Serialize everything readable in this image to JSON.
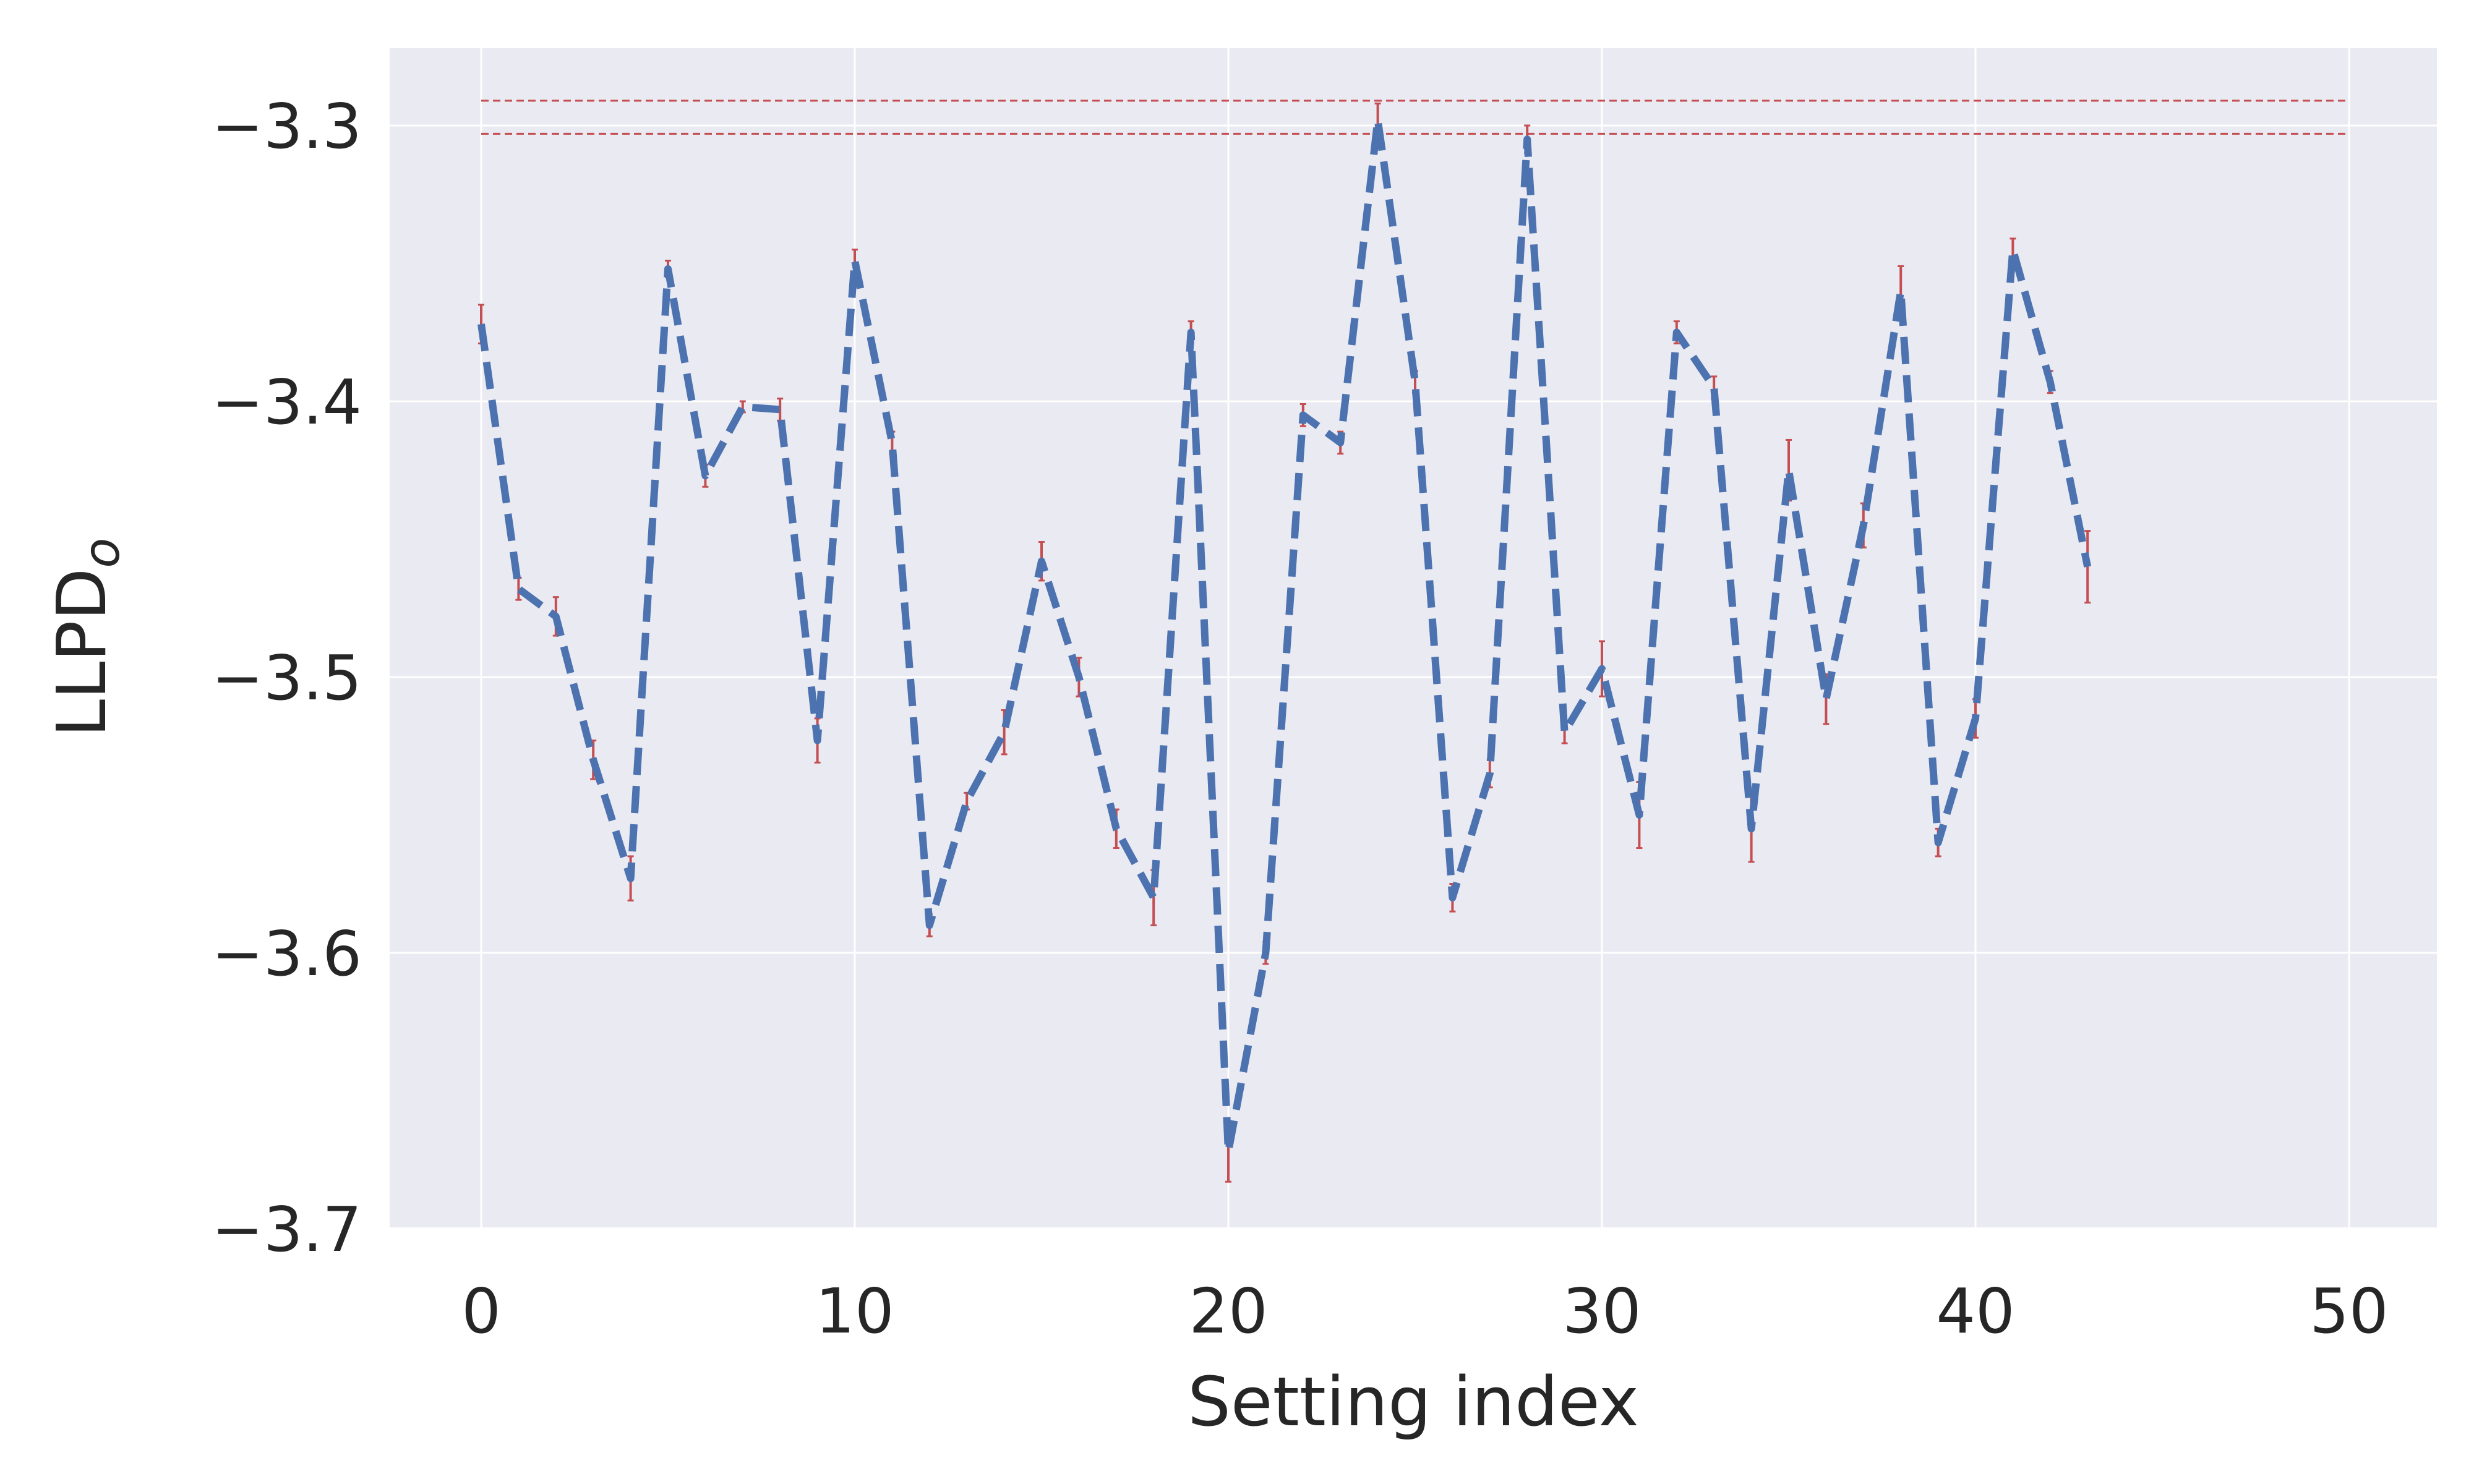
{
  "chart_data": {
    "type": "line",
    "title": "",
    "xlabel": "Setting index",
    "ylabel": "LLPD",
    "ylabel_subscript": "o",
    "xlim": [
      -2.5,
      52.5
    ],
    "ylim": [
      -3.7,
      -3.27
    ],
    "xticks": [
      0,
      10,
      20,
      30,
      40,
      50
    ],
    "yticks": [
      -3.3,
      -3.4,
      -3.5,
      -3.6,
      -3.7
    ],
    "xtick_labels": [
      "0",
      "10",
      "20",
      "30",
      "40",
      "50"
    ],
    "ytick_labels": [
      "−3.3",
      "−3.4",
      "−3.5",
      "−3.6",
      "−3.7"
    ],
    "grid": true,
    "reference_lines": [
      {
        "y": -3.291,
        "x_range": [
          0,
          50
        ],
        "style": "dashed",
        "color": "#c44e52"
      },
      {
        "y": -3.303,
        "x_range": [
          0,
          50
        ],
        "style": "dashed",
        "color": "#c44e52"
      }
    ],
    "series": [
      {
        "style": "dashed",
        "color": "#4c72b0",
        "error_color": "#c44e52",
        "x": [
          0,
          1,
          2,
          3,
          4,
          5,
          6,
          7,
          8,
          9,
          10,
          11,
          12,
          13,
          14,
          15,
          16,
          17,
          18,
          19,
          20,
          21,
          22,
          23,
          24,
          25,
          26,
          27,
          28,
          29,
          30,
          31,
          32,
          33,
          34,
          35,
          36,
          37,
          38,
          39,
          40,
          41,
          42,
          43
        ],
        "y": [
          -3.372,
          -3.468,
          -3.478,
          -3.53,
          -3.573,
          -3.352,
          -3.427,
          -3.402,
          -3.403,
          -3.523,
          -3.349,
          -3.415,
          -3.59,
          -3.545,
          -3.52,
          -3.458,
          -3.5,
          -3.555,
          -3.58,
          -3.375,
          -3.672,
          -3.6,
          -3.405,
          -3.415,
          -3.298,
          -3.393,
          -3.58,
          -3.535,
          -3.305,
          -3.52,
          -3.497,
          -3.55,
          -3.375,
          -3.395,
          -3.555,
          -3.425,
          -3.508,
          -3.445,
          -3.36,
          -3.56,
          -3.515,
          -3.345,
          -3.393,
          -3.46
        ],
        "error": [
          0.007,
          0.004,
          0.007,
          0.007,
          0.008,
          0.003,
          0.004,
          0.002,
          0.004,
          0.008,
          0.004,
          0.004,
          0.004,
          0.003,
          0.008,
          0.007,
          0.007,
          0.007,
          0.01,
          0.004,
          0.011,
          0.004,
          0.004,
          0.004,
          0.006,
          0.004,
          0.005,
          0.005,
          0.005,
          0.004,
          0.01,
          0.012,
          0.004,
          0.004,
          0.012,
          0.011,
          0.009,
          0.008,
          0.009,
          0.005,
          0.007,
          0.004,
          0.004,
          0.013
        ]
      }
    ]
  }
}
